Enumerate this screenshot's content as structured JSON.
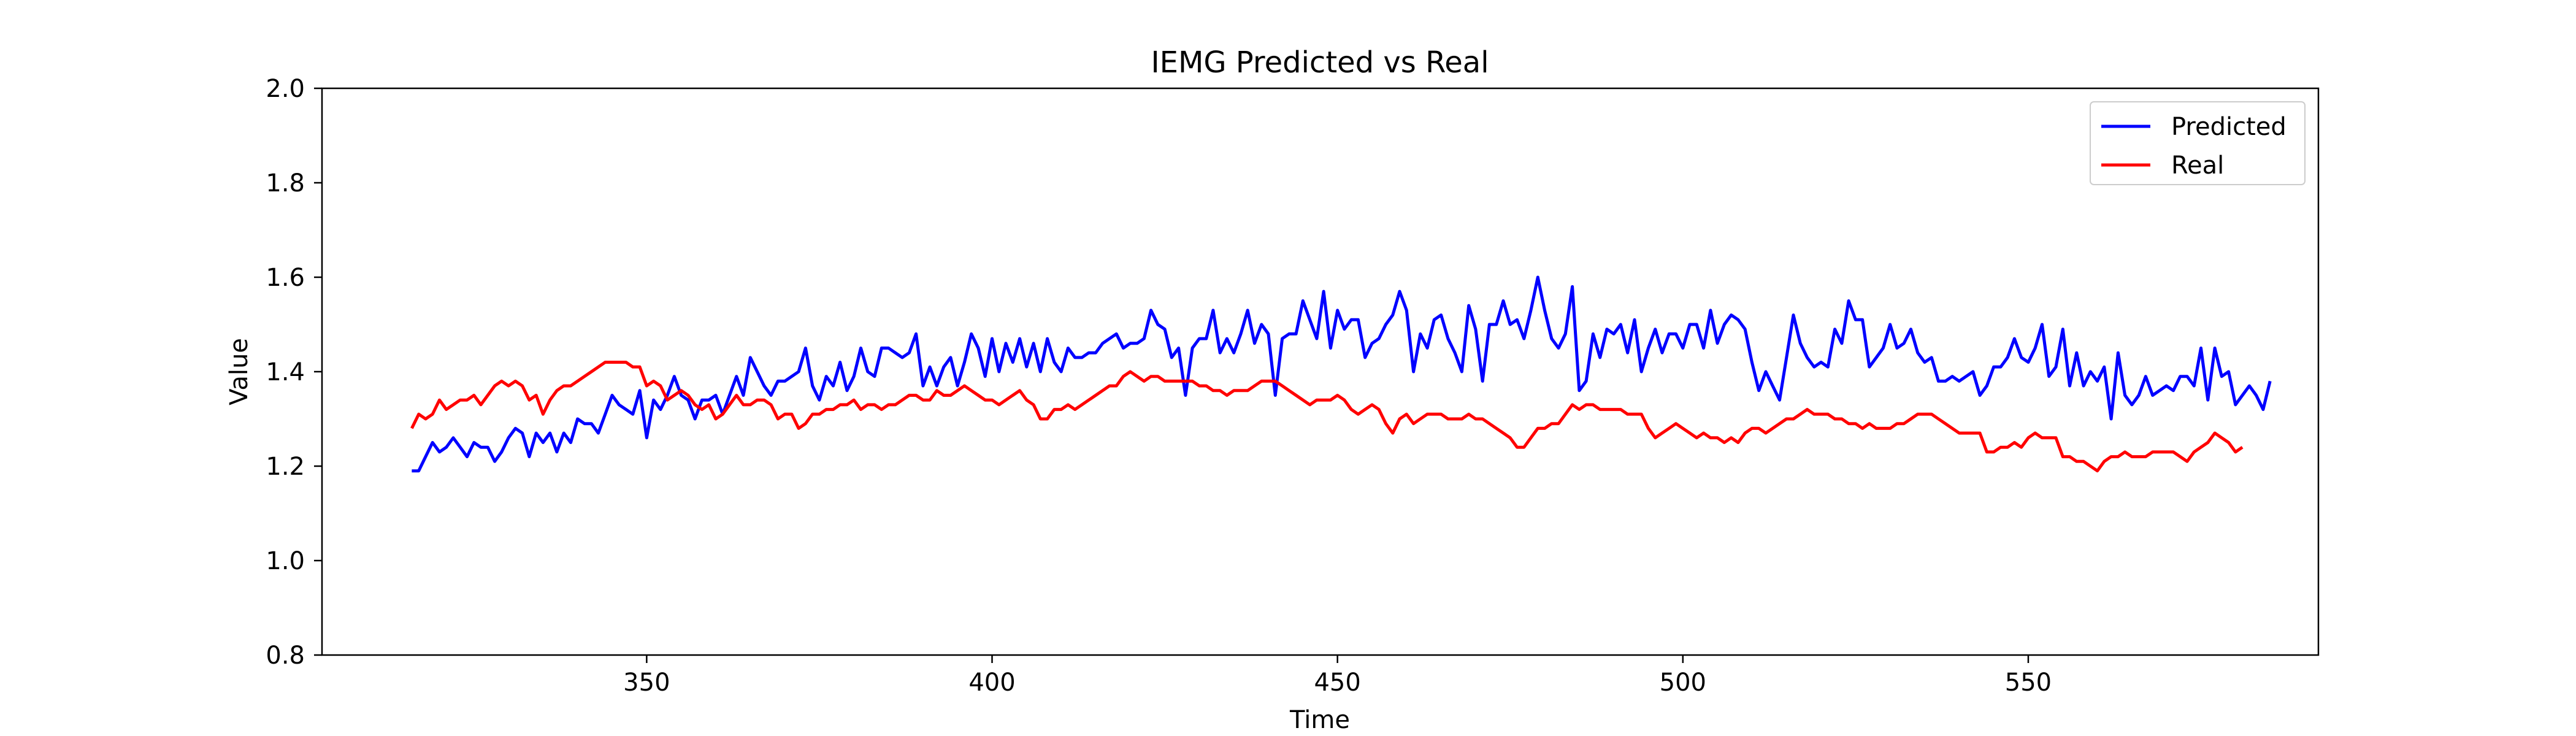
{
  "chart_data": {
    "type": "line",
    "title": "IEMG Predicted vs Real",
    "xlabel": "Time",
    "ylabel": "Value",
    "xlim": [
      303,
      592
    ],
    "ylim": [
      0.8,
      2.0
    ],
    "x_ticks": [
      350,
      400,
      450,
      500,
      550
    ],
    "x_tick_labels": [
      "350",
      "400",
      "450",
      "500",
      "550"
    ],
    "y_ticks": [
      0.8,
      1.0,
      1.2,
      1.4,
      1.6,
      1.8,
      2.0
    ],
    "y_tick_labels": [
      "0.8",
      "1.0",
      "1.2",
      "1.4",
      "1.6",
      "1.8",
      "2.0"
    ],
    "grid": false,
    "legend_position": "upper right",
    "x_start": 316,
    "series": [
      {
        "name": "Predicted",
        "color": "#0000ff",
        "values": [
          1.19,
          1.19,
          1.22,
          1.25,
          1.23,
          1.24,
          1.26,
          1.24,
          1.22,
          1.25,
          1.24,
          1.24,
          1.21,
          1.23,
          1.26,
          1.28,
          1.27,
          1.22,
          1.27,
          1.25,
          1.27,
          1.23,
          1.27,
          1.25,
          1.3,
          1.29,
          1.29,
          1.27,
          1.31,
          1.35,
          1.33,
          1.32,
          1.31,
          1.36,
          1.26,
          1.34,
          1.32,
          1.35,
          1.39,
          1.35,
          1.34,
          1.3,
          1.34,
          1.34,
          1.35,
          1.31,
          1.35,
          1.39,
          1.35,
          1.43,
          1.4,
          1.37,
          1.35,
          1.38,
          1.38,
          1.39,
          1.4,
          1.45,
          1.37,
          1.34,
          1.39,
          1.37,
          1.42,
          1.36,
          1.39,
          1.45,
          1.4,
          1.39,
          1.45,
          1.45,
          1.44,
          1.43,
          1.44,
          1.48,
          1.37,
          1.41,
          1.37,
          1.41,
          1.43,
          1.37,
          1.42,
          1.48,
          1.45,
          1.39,
          1.47,
          1.4,
          1.46,
          1.42,
          1.47,
          1.41,
          1.46,
          1.4,
          1.47,
          1.42,
          1.4,
          1.45,
          1.43,
          1.43,
          1.44,
          1.44,
          1.46,
          1.47,
          1.48,
          1.45,
          1.46,
          1.46,
          1.47,
          1.53,
          1.5,
          1.49,
          1.43,
          1.45,
          1.35,
          1.45,
          1.47,
          1.47,
          1.53,
          1.44,
          1.47,
          1.44,
          1.48,
          1.53,
          1.46,
          1.5,
          1.48,
          1.35,
          1.47,
          1.48,
          1.48,
          1.55,
          1.51,
          1.47,
          1.57,
          1.45,
          1.53,
          1.49,
          1.51,
          1.51,
          1.43,
          1.46,
          1.47,
          1.5,
          1.52,
          1.57,
          1.53,
          1.4,
          1.48,
          1.45,
          1.51,
          1.52,
          1.47,
          1.44,
          1.4,
          1.54,
          1.49,
          1.38,
          1.5,
          1.5,
          1.55,
          1.5,
          1.51,
          1.47,
          1.53,
          1.6,
          1.53,
          1.47,
          1.45,
          1.48,
          1.58,
          1.36,
          1.38,
          1.48,
          1.43,
          1.49,
          1.48,
          1.5,
          1.44,
          1.51,
          1.4,
          1.45,
          1.49,
          1.44,
          1.48,
          1.48,
          1.45,
          1.5,
          1.5,
          1.45,
          1.53,
          1.46,
          1.5,
          1.52,
          1.51,
          1.49,
          1.42,
          1.36,
          1.4,
          1.37,
          1.34,
          1.43,
          1.52,
          1.46,
          1.43,
          1.41,
          1.42,
          1.41,
          1.49,
          1.46,
          1.55,
          1.51,
          1.51,
          1.41,
          1.43,
          1.45,
          1.5,
          1.45,
          1.46,
          1.49,
          1.44,
          1.42,
          1.43,
          1.38,
          1.38,
          1.39,
          1.38,
          1.39,
          1.4,
          1.35,
          1.37,
          1.41,
          1.41,
          1.43,
          1.47,
          1.43,
          1.42,
          1.45,
          1.5,
          1.39,
          1.41,
          1.49,
          1.37,
          1.44,
          1.37,
          1.4,
          1.38,
          1.41,
          1.3,
          1.44,
          1.35,
          1.33,
          1.35,
          1.39,
          1.35,
          1.36,
          1.37,
          1.36,
          1.39,
          1.39,
          1.37,
          1.45,
          1.34,
          1.45,
          1.39,
          1.4,
          1.33,
          1.35,
          1.37,
          1.35,
          1.32,
          1.38
        ]
      },
      {
        "name": "Real",
        "color": "#ff0000",
        "values": [
          1.28,
          1.31,
          1.3,
          1.31,
          1.34,
          1.32,
          1.33,
          1.34,
          1.34,
          1.35,
          1.33,
          1.35,
          1.37,
          1.38,
          1.37,
          1.38,
          1.37,
          1.34,
          1.35,
          1.31,
          1.34,
          1.36,
          1.37,
          1.37,
          1.38,
          1.39,
          1.4,
          1.41,
          1.42,
          1.42,
          1.42,
          1.42,
          1.41,
          1.41,
          1.37,
          1.38,
          1.37,
          1.34,
          1.35,
          1.36,
          1.35,
          1.33,
          1.32,
          1.33,
          1.3,
          1.31,
          1.33,
          1.35,
          1.33,
          1.33,
          1.34,
          1.34,
          1.33,
          1.3,
          1.31,
          1.31,
          1.28,
          1.29,
          1.31,
          1.31,
          1.32,
          1.32,
          1.33,
          1.33,
          1.34,
          1.32,
          1.33,
          1.33,
          1.32,
          1.33,
          1.33,
          1.34,
          1.35,
          1.35,
          1.34,
          1.34,
          1.36,
          1.35,
          1.35,
          1.36,
          1.37,
          1.36,
          1.35,
          1.34,
          1.34,
          1.33,
          1.34,
          1.35,
          1.36,
          1.34,
          1.33,
          1.3,
          1.3,
          1.32,
          1.32,
          1.33,
          1.32,
          1.33,
          1.34,
          1.35,
          1.36,
          1.37,
          1.37,
          1.39,
          1.4,
          1.39,
          1.38,
          1.39,
          1.39,
          1.38,
          1.38,
          1.38,
          1.38,
          1.38,
          1.37,
          1.37,
          1.36,
          1.36,
          1.35,
          1.36,
          1.36,
          1.36,
          1.37,
          1.38,
          1.38,
          1.38,
          1.37,
          1.36,
          1.35,
          1.34,
          1.33,
          1.34,
          1.34,
          1.34,
          1.35,
          1.34,
          1.32,
          1.31,
          1.32,
          1.33,
          1.32,
          1.29,
          1.27,
          1.3,
          1.31,
          1.29,
          1.3,
          1.31,
          1.31,
          1.31,
          1.3,
          1.3,
          1.3,
          1.31,
          1.3,
          1.3,
          1.29,
          1.28,
          1.27,
          1.26,
          1.24,
          1.24,
          1.26,
          1.28,
          1.28,
          1.29,
          1.29,
          1.31,
          1.33,
          1.32,
          1.33,
          1.33,
          1.32,
          1.32,
          1.32,
          1.32,
          1.31,
          1.31,
          1.31,
          1.28,
          1.26,
          1.27,
          1.28,
          1.29,
          1.28,
          1.27,
          1.26,
          1.27,
          1.26,
          1.26,
          1.25,
          1.26,
          1.25,
          1.27,
          1.28,
          1.28,
          1.27,
          1.28,
          1.29,
          1.3,
          1.3,
          1.31,
          1.32,
          1.31,
          1.31,
          1.31,
          1.3,
          1.3,
          1.29,
          1.29,
          1.28,
          1.29,
          1.28,
          1.28,
          1.28,
          1.29,
          1.29,
          1.3,
          1.31,
          1.31,
          1.31,
          1.3,
          1.29,
          1.28,
          1.27,
          1.27,
          1.27,
          1.27,
          1.23,
          1.23,
          1.24,
          1.24,
          1.25,
          1.24,
          1.26,
          1.27,
          1.26,
          1.26,
          1.26,
          1.22,
          1.22,
          1.21,
          1.21,
          1.2,
          1.19,
          1.21,
          1.22,
          1.22,
          1.23,
          1.22,
          1.22,
          1.22,
          1.23,
          1.23,
          1.23,
          1.23,
          1.22,
          1.21,
          1.23,
          1.24,
          1.25,
          1.27,
          1.26,
          1.25,
          1.23,
          1.24
        ]
      }
    ]
  }
}
